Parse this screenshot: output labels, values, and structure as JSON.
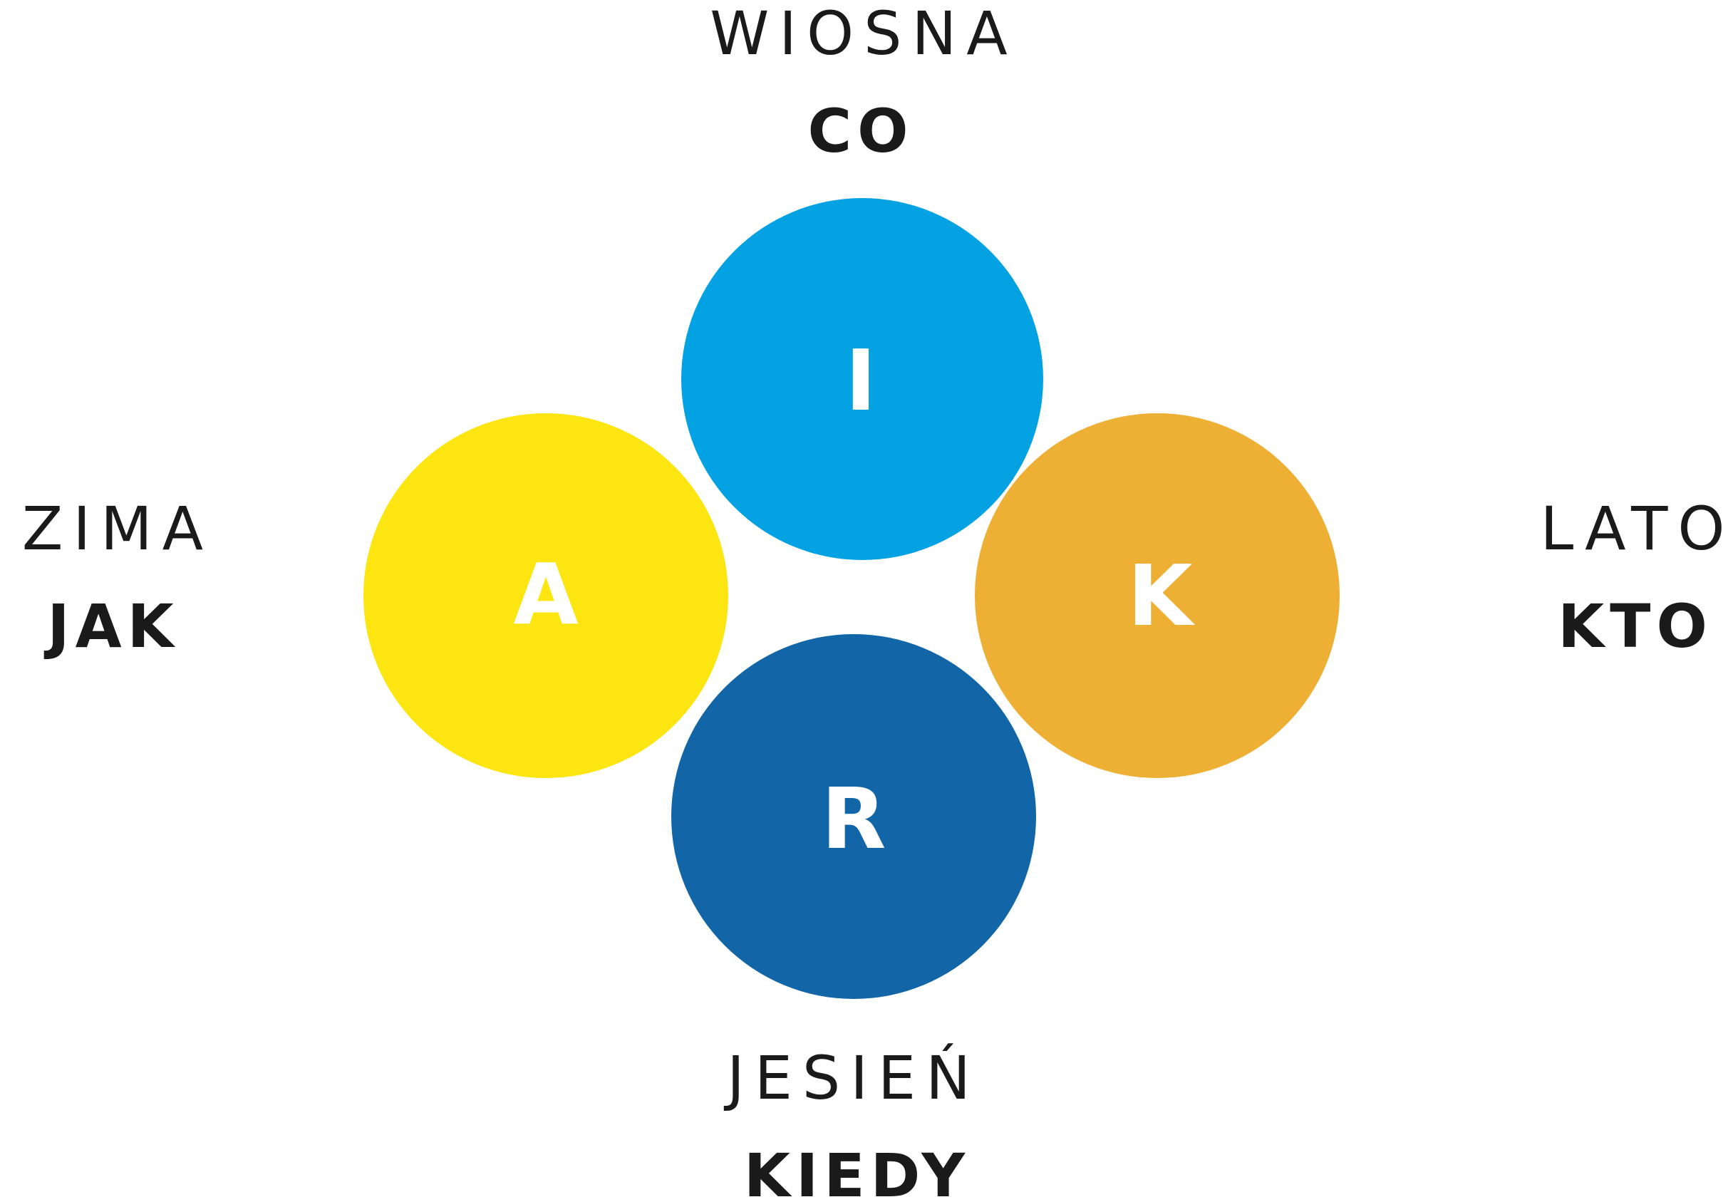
{
  "top": {
    "season": "WIOSNA",
    "question": "CO",
    "letter": "I"
  },
  "left": {
    "season": "ZIMA",
    "question": "JAK",
    "letter": "A"
  },
  "right": {
    "season": "LATO",
    "question": "KTO",
    "letter": "K"
  },
  "bottom": {
    "season": "JESIEŃ",
    "question": "KIEDY",
    "letter": "R"
  }
}
